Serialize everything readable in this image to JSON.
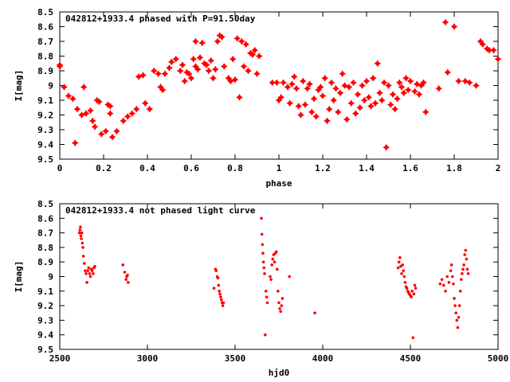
{
  "accent_color": "#ff0000",
  "chart_data": [
    {
      "type": "scatter",
      "title": "042812+1933.4 phased with P=91.50day",
      "xlabel": "phase",
      "ylabel": "I[mag]",
      "xlim": [
        0,
        2
      ],
      "ylim": [
        8.5,
        9.5
      ],
      "y_inverted": true,
      "xticks": [
        0,
        0.2,
        0.4,
        0.6,
        0.8,
        1,
        1.2,
        1.4,
        1.6,
        1.8,
        2
      ],
      "xtick_labels": [
        "0",
        "0.2",
        "0.4",
        "0.6",
        "0.8",
        "1",
        "1.2",
        "1.4",
        "1.6",
        "1.8",
        "2"
      ],
      "yticks": [
        8.5,
        8.6,
        8.7,
        8.8,
        8.9,
        9.0,
        9.1,
        9.2,
        9.3,
        9.4,
        9.5
      ],
      "ytick_labels": [
        "8.5",
        "8.6",
        "8.7",
        "8.8",
        "8.9",
        "9",
        "9.1",
        "9.2",
        "9.3",
        "9.4",
        "9.5"
      ],
      "marker": "star",
      "color": "#ff0000",
      "points": [
        [
          0.0,
          8.87
        ],
        [
          0.0,
          8.86
        ],
        [
          0.02,
          9.01
        ],
        [
          0.04,
          9.07
        ],
        [
          0.06,
          9.09
        ],
        [
          0.07,
          9.39
        ],
        [
          0.08,
          9.16
        ],
        [
          0.1,
          9.2
        ],
        [
          0.11,
          9.01
        ],
        [
          0.12,
          9.19
        ],
        [
          0.14,
          9.17
        ],
        [
          0.15,
          9.24
        ],
        [
          0.16,
          9.28
        ],
        [
          0.17,
          9.1
        ],
        [
          0.18,
          9.11
        ],
        [
          0.19,
          9.33
        ],
        [
          0.21,
          9.31
        ],
        [
          0.22,
          9.13
        ],
        [
          0.23,
          9.14
        ],
        [
          0.23,
          9.19
        ],
        [
          0.24,
          9.35
        ],
        [
          0.26,
          9.31
        ],
        [
          0.29,
          9.24
        ],
        [
          0.31,
          9.21
        ],
        [
          0.33,
          9.19
        ],
        [
          0.35,
          9.16
        ],
        [
          0.36,
          8.94
        ],
        [
          0.38,
          8.93
        ],
        [
          0.39,
          9.12
        ],
        [
          0.41,
          9.16
        ],
        [
          0.43,
          8.9
        ],
        [
          0.45,
          8.92
        ],
        [
          0.46,
          9.01
        ],
        [
          0.47,
          9.03
        ],
        [
          0.48,
          8.92
        ],
        [
          0.5,
          8.88
        ],
        [
          0.51,
          8.84
        ],
        [
          0.53,
          8.82
        ],
        [
          0.55,
          8.9
        ],
        [
          0.56,
          8.86
        ],
        [
          0.57,
          8.97
        ],
        [
          0.58,
          8.91
        ],
        [
          0.59,
          8.92
        ],
        [
          0.6,
          8.95
        ],
        [
          0.61,
          8.82
        ],
        [
          0.62,
          8.87
        ],
        [
          0.62,
          8.7
        ],
        [
          0.63,
          8.89
        ],
        [
          0.64,
          8.81
        ],
        [
          0.65,
          8.71
        ],
        [
          0.66,
          8.85
        ],
        [
          0.67,
          8.86
        ],
        [
          0.68,
          8.9
        ],
        [
          0.69,
          8.83
        ],
        [
          0.7,
          8.95
        ],
        [
          0.71,
          8.89
        ],
        [
          0.72,
          8.7
        ],
        [
          0.73,
          8.66
        ],
        [
          0.74,
          8.67
        ],
        [
          0.75,
          8.87
        ],
        [
          0.77,
          8.95
        ],
        [
          0.78,
          8.97
        ],
        [
          0.79,
          8.82
        ],
        [
          0.8,
          8.96
        ],
        [
          0.81,
          8.68
        ],
        [
          0.82,
          9.08
        ],
        [
          0.83,
          8.7
        ],
        [
          0.84,
          8.87
        ],
        [
          0.85,
          8.72
        ],
        [
          0.86,
          8.9
        ],
        [
          0.87,
          8.78
        ],
        [
          0.88,
          8.79
        ],
        [
          0.89,
          8.76
        ],
        [
          0.9,
          8.92
        ],
        [
          0.91,
          8.8
        ],
        [
          0.97,
          8.98
        ],
        [
          0.99,
          8.98
        ],
        [
          1.0,
          9.1
        ],
        [
          1.01,
          9.08
        ],
        [
          1.02,
          8.98
        ],
        [
          1.04,
          9.01
        ],
        [
          1.05,
          9.12
        ],
        [
          1.06,
          8.99
        ],
        [
          1.07,
          8.94
        ],
        [
          1.08,
          9.02
        ],
        [
          1.09,
          9.14
        ],
        [
          1.1,
          9.2
        ],
        [
          1.11,
          8.97
        ],
        [
          1.12,
          9.13
        ],
        [
          1.13,
          9.02
        ],
        [
          1.14,
          8.99
        ],
        [
          1.15,
          9.18
        ],
        [
          1.16,
          9.09
        ],
        [
          1.17,
          9.21
        ],
        [
          1.18,
          9.03
        ],
        [
          1.19,
          9.01
        ],
        [
          1.2,
          9.07
        ],
        [
          1.21,
          8.95
        ],
        [
          1.22,
          9.24
        ],
        [
          1.23,
          9.16
        ],
        [
          1.24,
          8.98
        ],
        [
          1.25,
          9.1
        ],
        [
          1.26,
          9.02
        ],
        [
          1.27,
          9.18
        ],
        [
          1.28,
          9.05
        ],
        [
          1.29,
          8.92
        ],
        [
          1.3,
          9.0
        ],
        [
          1.31,
          9.23
        ],
        [
          1.32,
          9.01
        ],
        [
          1.33,
          9.12
        ],
        [
          1.34,
          8.98
        ],
        [
          1.35,
          9.19
        ],
        [
          1.36,
          9.06
        ],
        [
          1.37,
          9.15
        ],
        [
          1.38,
          9.0
        ],
        [
          1.39,
          9.1
        ],
        [
          1.4,
          8.97
        ],
        [
          1.41,
          9.08
        ],
        [
          1.42,
          9.14
        ],
        [
          1.43,
          8.95
        ],
        [
          1.44,
          9.12
        ],
        [
          1.45,
          8.85
        ],
        [
          1.46,
          9.05
        ],
        [
          1.47,
          9.1
        ],
        [
          1.48,
          8.98
        ],
        [
          1.49,
          9.42
        ],
        [
          1.5,
          9.0
        ],
        [
          1.51,
          9.13
        ],
        [
          1.52,
          9.06
        ],
        [
          1.53,
          9.16
        ],
        [
          1.54,
          9.09
        ],
        [
          1.55,
          8.98
        ],
        [
          1.56,
          9.01
        ],
        [
          1.57,
          9.05
        ],
        [
          1.58,
          8.95
        ],
        [
          1.59,
          9.03
        ],
        [
          1.6,
          8.97
        ],
        [
          1.62,
          9.04
        ],
        [
          1.63,
          8.99
        ],
        [
          1.64,
          9.06
        ],
        [
          1.65,
          9.0
        ],
        [
          1.66,
          8.98
        ],
        [
          1.67,
          9.18
        ],
        [
          1.73,
          9.02
        ],
        [
          1.76,
          8.57
        ],
        [
          1.77,
          8.91
        ],
        [
          1.8,
          8.6
        ],
        [
          1.82,
          8.97
        ],
        [
          1.85,
          8.97
        ],
        [
          1.87,
          8.98
        ],
        [
          1.9,
          9.0
        ],
        [
          1.92,
          8.7
        ],
        [
          1.93,
          8.72
        ],
        [
          1.95,
          8.75
        ],
        [
          1.96,
          8.76
        ],
        [
          1.98,
          8.76
        ],
        [
          2.0,
          8.82
        ]
      ]
    },
    {
      "type": "scatter",
      "title": "042812+1933.4 not phased light curve",
      "xlabel": "hjd0",
      "ylabel": "I[mag]",
      "xlim": [
        2500,
        5000
      ],
      "ylim": [
        8.5,
        9.5
      ],
      "y_inverted": true,
      "xticks": [
        2500,
        3000,
        3500,
        4000,
        4500,
        5000
      ],
      "xtick_labels": [
        "2500",
        "3000",
        "3500",
        "4000",
        "4500",
        "5000"
      ],
      "yticks": [
        8.5,
        8.6,
        8.7,
        8.8,
        8.9,
        9.0,
        9.1,
        9.2,
        9.3,
        9.4,
        9.5
      ],
      "ytick_labels": [
        "8.5",
        "8.6",
        "8.7",
        "8.8",
        "8.9",
        "9",
        "9.1",
        "9.2",
        "9.3",
        "9.4",
        "9.5"
      ],
      "marker": "dot",
      "color": "#ff0000",
      "points": [
        [
          2612,
          8.7
        ],
        [
          2615,
          8.68
        ],
        [
          2618,
          8.66
        ],
        [
          2620,
          8.72
        ],
        [
          2623,
          8.74
        ],
        [
          2626,
          8.7
        ],
        [
          2629,
          8.77
        ],
        [
          2632,
          8.8
        ],
        [
          2635,
          8.86
        ],
        [
          2640,
          8.91
        ],
        [
          2645,
          8.96
        ],
        [
          2650,
          8.98
        ],
        [
          2655,
          9.04
        ],
        [
          2660,
          8.96
        ],
        [
          2665,
          8.94
        ],
        [
          2670,
          8.98
        ],
        [
          2675,
          9.0
        ],
        [
          2680,
          8.95
        ],
        [
          2685,
          8.96
        ],
        [
          2690,
          8.98
        ],
        [
          2695,
          8.94
        ],
        [
          2700,
          8.93
        ],
        [
          2860,
          8.92
        ],
        [
          2870,
          8.97
        ],
        [
          2878,
          9.02
        ],
        [
          2882,
          9.0
        ],
        [
          2886,
          8.99
        ],
        [
          2890,
          9.04
        ],
        [
          3380,
          9.08
        ],
        [
          3388,
          8.95
        ],
        [
          3392,
          8.96
        ],
        [
          3398,
          9.0
        ],
        [
          3402,
          9.01
        ],
        [
          3406,
          9.06
        ],
        [
          3410,
          9.1
        ],
        [
          3414,
          9.12
        ],
        [
          3418,
          9.14
        ],
        [
          3422,
          9.16
        ],
        [
          3426,
          9.18
        ],
        [
          3430,
          9.2
        ],
        [
          3434,
          9.18
        ],
        [
          3650,
          8.6
        ],
        [
          3653,
          8.71
        ],
        [
          3656,
          8.78
        ],
        [
          3659,
          8.84
        ],
        [
          3662,
          8.9
        ],
        [
          3665,
          8.94
        ],
        [
          3668,
          8.98
        ],
        [
          3672,
          9.4
        ],
        [
          3676,
          9.1
        ],
        [
          3680,
          9.14
        ],
        [
          3684,
          9.18
        ],
        [
          3700,
          9.0
        ],
        [
          3705,
          9.02
        ],
        [
          3710,
          8.92
        ],
        [
          3715,
          8.88
        ],
        [
          3720,
          8.85
        ],
        [
          3725,
          8.9
        ],
        [
          3730,
          8.84
        ],
        [
          3735,
          8.83
        ],
        [
          3740,
          8.95
        ],
        [
          3745,
          9.1
        ],
        [
          3750,
          9.18
        ],
        [
          3755,
          9.22
        ],
        [
          3760,
          9.24
        ],
        [
          3765,
          9.2
        ],
        [
          3770,
          9.15
        ],
        [
          3810,
          9.0
        ],
        [
          3955,
          9.25
        ],
        [
          4430,
          8.94
        ],
        [
          4435,
          8.9
        ],
        [
          4440,
          8.87
        ],
        [
          4445,
          8.93
        ],
        [
          4450,
          8.98
        ],
        [
          4455,
          8.92
        ],
        [
          4460,
          8.96
        ],
        [
          4465,
          9.0
        ],
        [
          4470,
          9.04
        ],
        [
          4475,
          9.07
        ],
        [
          4480,
          9.08
        ],
        [
          4485,
          9.1
        ],
        [
          4490,
          9.11
        ],
        [
          4495,
          9.12
        ],
        [
          4500,
          9.13
        ],
        [
          4505,
          9.14
        ],
        [
          4510,
          9.1
        ],
        [
          4515,
          9.42
        ],
        [
          4520,
          9.12
        ],
        [
          4525,
          9.06
        ],
        [
          4530,
          9.08
        ],
        [
          4670,
          9.05
        ],
        [
          4680,
          9.02
        ],
        [
          4690,
          9.06
        ],
        [
          4700,
          9.1
        ],
        [
          4710,
          9.0
        ],
        [
          4720,
          9.04
        ],
        [
          4730,
          8.96
        ],
        [
          4735,
          8.92
        ],
        [
          4740,
          9.0
        ],
        [
          4745,
          9.05
        ],
        [
          4750,
          9.15
        ],
        [
          4755,
          9.2
        ],
        [
          4760,
          9.25
        ],
        [
          4765,
          9.3
        ],
        [
          4770,
          9.35
        ],
        [
          4775,
          9.28
        ],
        [
          4780,
          9.2
        ],
        [
          4785,
          9.1
        ],
        [
          4790,
          9.02
        ],
        [
          4795,
          8.98
        ],
        [
          4800,
          8.95
        ],
        [
          4805,
          8.92
        ],
        [
          4810,
          8.85
        ],
        [
          4815,
          8.82
        ],
        [
          4820,
          8.88
        ],
        [
          4825,
          8.95
        ],
        [
          4830,
          8.98
        ]
      ]
    }
  ]
}
